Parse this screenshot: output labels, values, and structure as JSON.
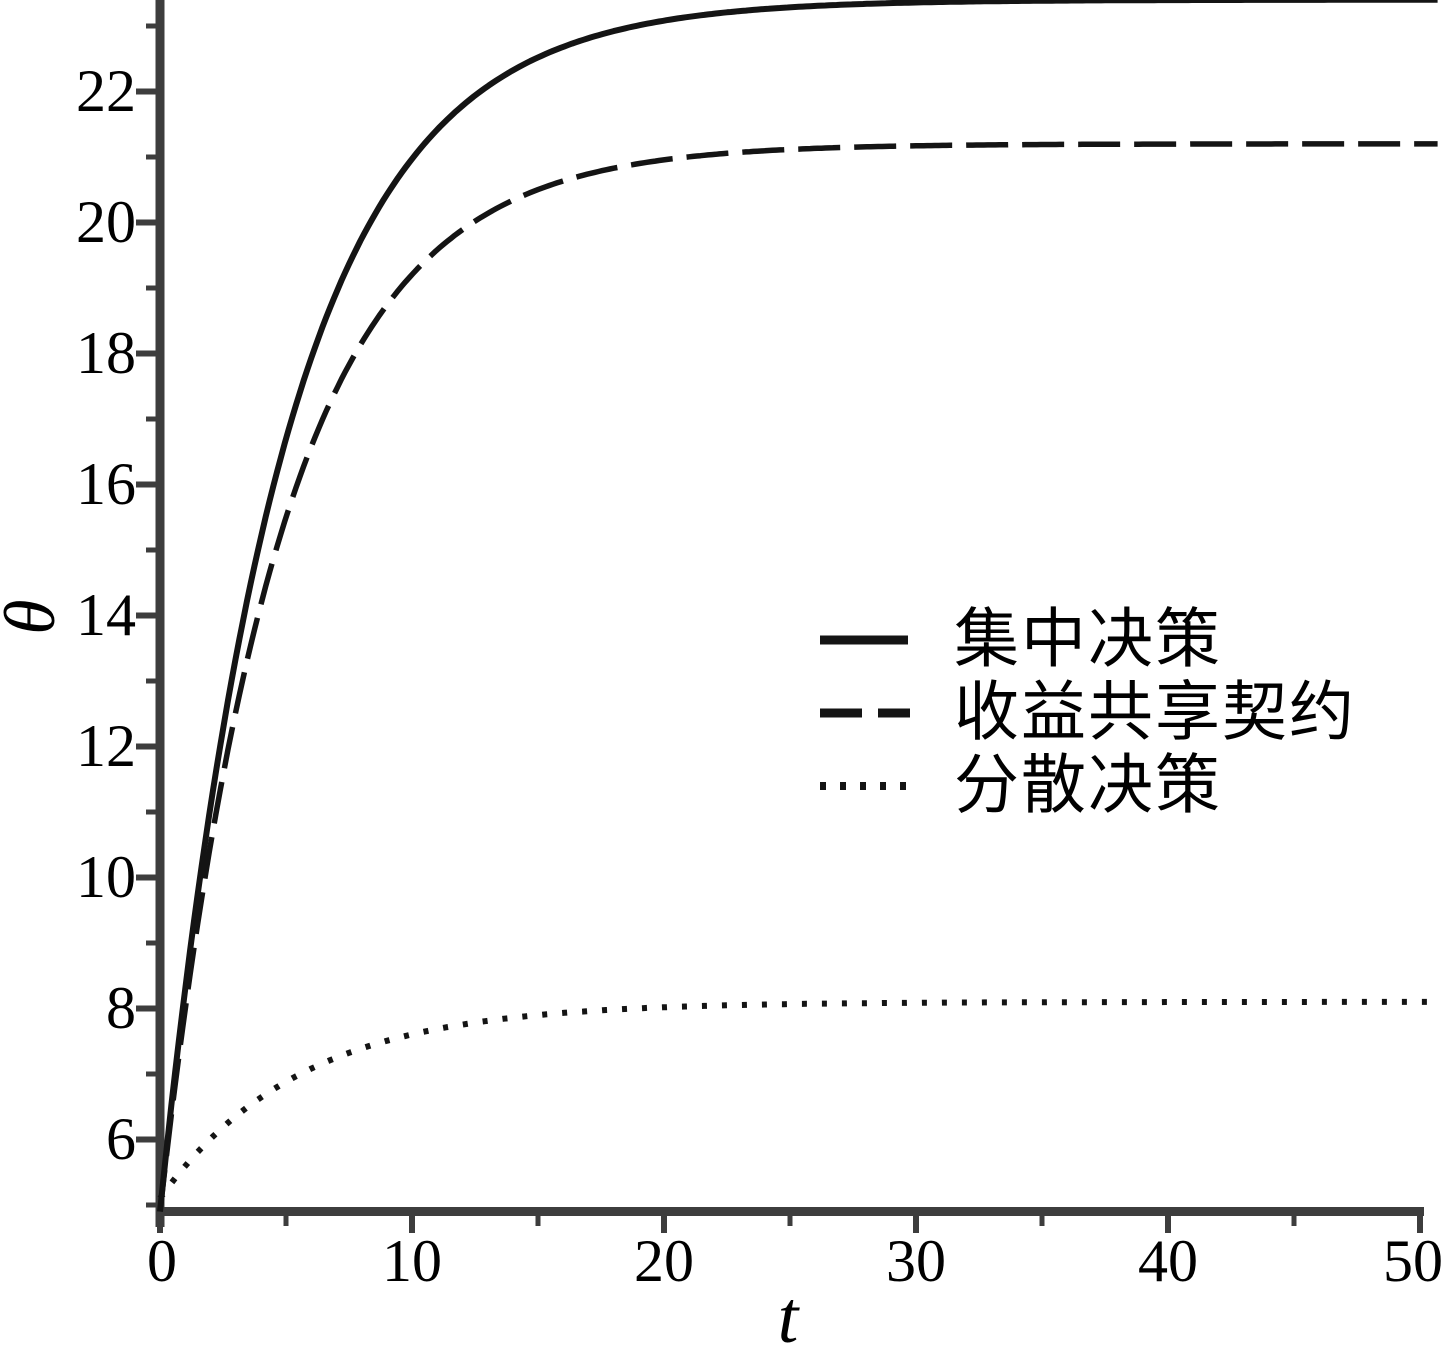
{
  "figure": {
    "background": "#ffffff",
    "curve_color": "#141414",
    "axis_color": "#3d3d3d",
    "text_color": "#000000"
  },
  "chart_data": {
    "type": "line",
    "title": "",
    "xlabel": "t",
    "ylabel": "θ",
    "xlim": [
      0,
      50
    ],
    "ylim": [
      4.9,
      23.4
    ],
    "grid": false,
    "legend_position": "center-right",
    "x_ticks_major": [
      0,
      10,
      20,
      30,
      40,
      50
    ],
    "x_ticks_minor": [
      5,
      15,
      25,
      35,
      45
    ],
    "y_ticks_major": [
      6,
      8,
      10,
      12,
      14,
      16,
      18,
      20,
      22
    ],
    "y_ticks_minor": [
      5,
      7,
      9,
      11,
      13,
      15,
      17,
      19,
      21,
      23
    ],
    "x_sample": [
      0,
      5,
      10,
      15,
      20,
      25,
      30,
      35,
      40,
      45,
      50
    ],
    "series": [
      {
        "name": "集中决策",
        "line_style": "solid",
        "values": [
          4.9,
          16.7,
          21.0,
          22.5,
          23.1,
          23.28,
          23.36,
          23.38,
          23.39,
          23.4,
          23.4
        ],
        "model": {
          "start": 4.9,
          "asymptote": 23.4,
          "rate": 0.203
        }
      },
      {
        "name": "收益共享契约",
        "line_style": "dashed",
        "values": [
          4.9,
          15.5,
          19.2,
          20.5,
          20.96,
          21.11,
          21.17,
          21.19,
          21.2,
          21.2,
          21.2
        ],
        "model": {
          "start": 4.9,
          "asymptote": 21.2,
          "rate": 0.21
        }
      },
      {
        "name": "分散决策",
        "line_style": "dotted",
        "values": [
          5.1,
          6.88,
          7.6,
          7.9,
          8.02,
          8.07,
          8.09,
          8.1,
          8.1,
          8.1,
          8.1
        ],
        "model": {
          "start": 5.1,
          "asymptote": 8.1,
          "rate": 0.18
        }
      }
    ]
  },
  "axes": {
    "x_label": "t",
    "y_label": "θ",
    "x_tick_labels": [
      "0",
      "10",
      "20",
      "30",
      "40",
      "50"
    ],
    "y_tick_labels": [
      "22",
      "20",
      "18",
      "16",
      "14",
      "12",
      "10",
      "8",
      "6"
    ]
  },
  "legend": {
    "items": [
      {
        "label": "集中决策",
        "style": "solid"
      },
      {
        "label": "收益共享契约",
        "style": "dashed"
      },
      {
        "label": "分散决策",
        "style": "dotted"
      }
    ]
  }
}
